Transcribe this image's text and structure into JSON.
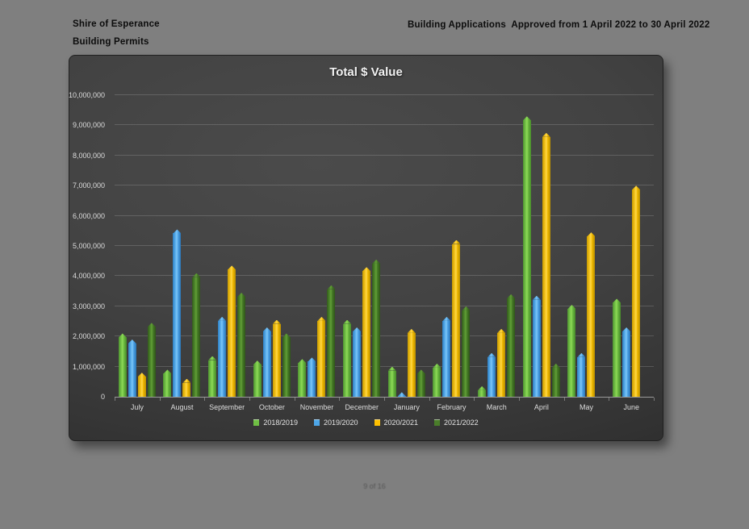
{
  "page": {
    "header_left_line1": "Shire of Esperance",
    "header_left_line2": "Building Permits",
    "header_right": "Building Applications  Approved from 1 April 2022 to 30 April 2022",
    "footer": "9 of 16"
  },
  "colors": {
    "page_background": "#7f7f7f",
    "chart_background": "#3d3d3d",
    "gridline": "rgba(255,255,255,0.16)",
    "axis_text": "#dddddd",
    "title_text": "#f2f2f2",
    "header_text": "#0c0c0c"
  },
  "chart_data": {
    "type": "bar",
    "title": "Total $ Value",
    "xlabel": "",
    "ylabel": "",
    "ylim": [
      0,
      10000000
    ],
    "ytick_interval": 1000000,
    "y_tick_labels": [
      "0",
      "1,000,000",
      "2,000,000",
      "3,000,000",
      "4,000,000",
      "5,000,000",
      "6,000,000",
      "7,000,000",
      "8,000,000",
      "9,000,000",
      "10,000,000"
    ],
    "grid": true,
    "legend_position": "bottom",
    "categories": [
      "July",
      "August",
      "September",
      "October",
      "November",
      "December",
      "January",
      "February",
      "March",
      "April",
      "May",
      "June"
    ],
    "series": [
      {
        "name": "2018/2019",
        "color": "#6fbf44",
        "values": [
          2100000,
          900000,
          1350000,
          1200000,
          1250000,
          2550000,
          1000000,
          1100000,
          350000,
          9300000,
          3050000,
          3250000
        ]
      },
      {
        "name": "2019/2020",
        "color": "#4da6e8",
        "values": [
          1900000,
          5550000,
          2650000,
          2300000,
          1300000,
          2300000,
          150000,
          2650000,
          1450000,
          3350000,
          1450000,
          2300000
        ]
      },
      {
        "name": "2020/2021",
        "color": "#ffc000",
        "values": [
          800000,
          600000,
          4350000,
          2550000,
          2650000,
          4300000,
          2250000,
          5200000,
          2250000,
          8750000,
          5450000,
          7000000
        ]
      },
      {
        "name": "2021/2022",
        "color": "#4a7d2a",
        "values": [
          2450000,
          4100000,
          3450000,
          2100000,
          3700000,
          4550000,
          900000,
          3000000,
          3400000,
          1100000,
          null,
          null
        ]
      }
    ]
  }
}
